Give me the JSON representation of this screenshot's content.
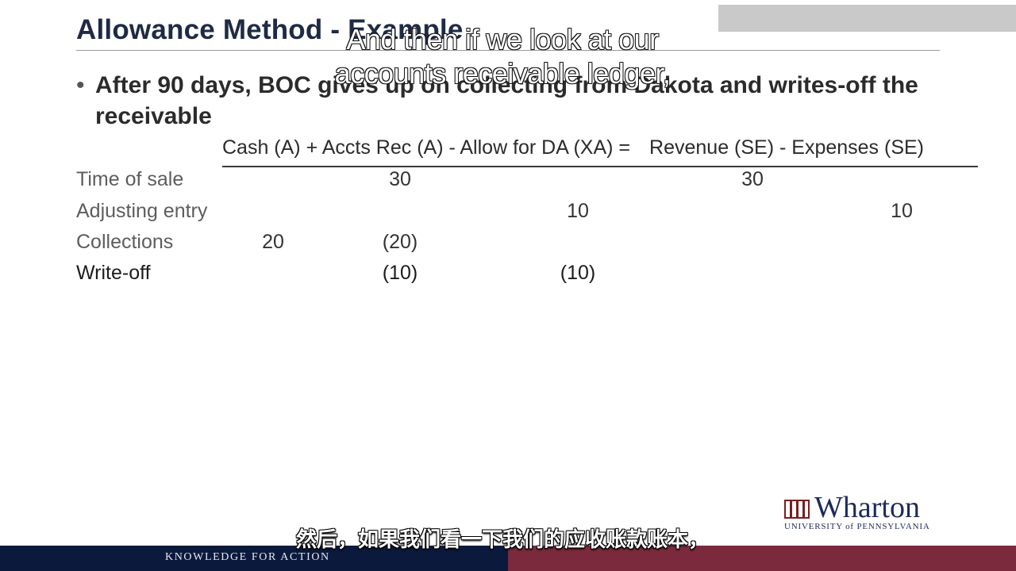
{
  "slide": {
    "title": "Allowance Method - Example",
    "bullet": "After 90 days, BOC gives up on collecting from Dakota and writes-off the receivable",
    "equation": {
      "left_side": "Cash (A) + Accts Rec (A) - Allow for DA (XA) =",
      "right_side": "Revenue (SE) - Expenses (SE)"
    },
    "rows": [
      {
        "label": "Time of sale",
        "cash": "",
        "accts_rec": "30",
        "allow_da": "",
        "revenue": "30",
        "expenses": ""
      },
      {
        "label": "Adjusting entry",
        "cash": "",
        "accts_rec": "",
        "allow_da": "10",
        "revenue": "",
        "expenses": "10"
      },
      {
        "label": "Collections",
        "cash": "20",
        "accts_rec": "(20)",
        "allow_da": "",
        "revenue": "",
        "expenses": ""
      },
      {
        "label": "Write-off",
        "cash": "",
        "accts_rec": "(10)",
        "allow_da": "(10)",
        "revenue": "",
        "expenses": ""
      }
    ]
  },
  "subtitles": {
    "english": [
      "And then if we look at our",
      "accounts receivable ledger,"
    ],
    "chinese": "然后，如果我们看一下我们的应收账款账本，"
  },
  "branding": {
    "logo_word": "Wharton",
    "logo_sub": "UNIVERSITY of PENNSYLVANIA",
    "tagline": "KNOWLEDGE FOR ACTION",
    "colors": {
      "navy": "#0b1a3c",
      "maroon": "#7b2a3d",
      "title": "#1f2a44"
    }
  }
}
